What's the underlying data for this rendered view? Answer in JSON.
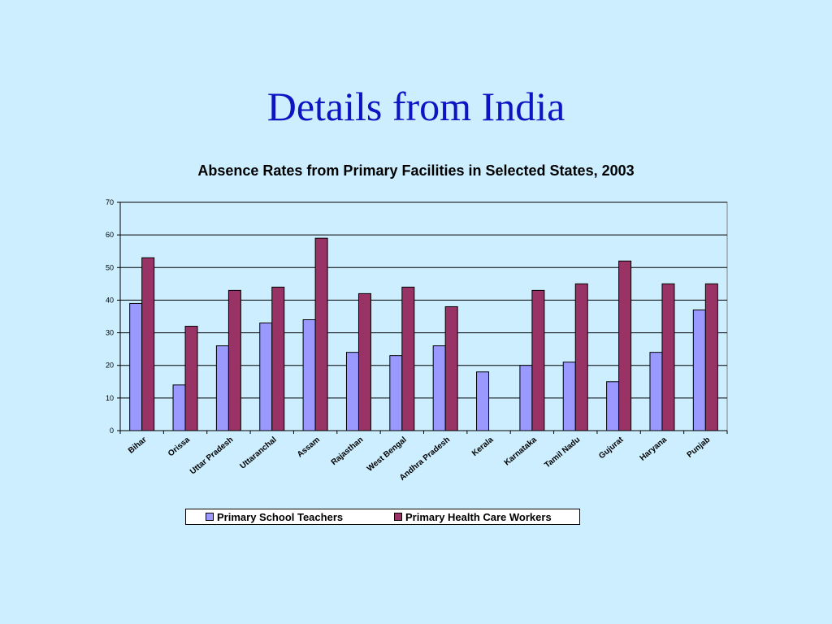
{
  "slide": {
    "title": "Details from India"
  },
  "chart_data": {
    "type": "bar",
    "title": "Absence Rates from Primary Facilities in Selected States, 2003",
    "xlabel": "",
    "ylabel": "",
    "ylim": [
      0,
      70
    ],
    "yticks": [
      0,
      10,
      20,
      30,
      40,
      50,
      60,
      70
    ],
    "grid": true,
    "legend_position": "bottom",
    "categories": [
      "Bihar",
      "Orissa",
      "Uttar Pradesh",
      "Uttaranchal",
      "Assam",
      "Rajasthan",
      "West Bengal",
      "Andhra Pradesh",
      "Kerala",
      "Karnataka",
      "Tamil Nadu",
      "Gujurat",
      "Haryana",
      "Punjab"
    ],
    "series": [
      {
        "name": "Primary School Teachers",
        "color": "#9999ff",
        "values": [
          39,
          14,
          26,
          33,
          34,
          24,
          23,
          26,
          18,
          20,
          21,
          15,
          24,
          37
        ]
      },
      {
        "name": "Primary Health Care Workers",
        "color": "#993366",
        "values": [
          53,
          32,
          43,
          44,
          59,
          42,
          44,
          38,
          null,
          43,
          45,
          52,
          45,
          45
        ]
      }
    ]
  }
}
